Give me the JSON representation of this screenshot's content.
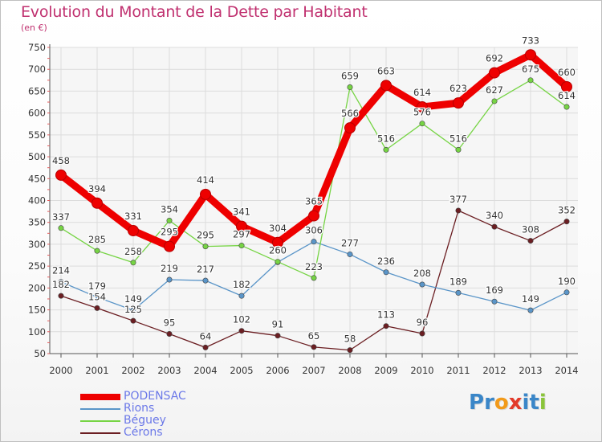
{
  "chart_data": {
    "type": "line",
    "title": "Evolution du Montant de la Dette par Habitant",
    "subtitle": "(en €)",
    "categories": [
      "2000",
      "2001",
      "2002",
      "2003",
      "2004",
      "2005",
      "2006",
      "2007",
      "2008",
      "2009",
      "2010",
      "2011",
      "2012",
      "2013",
      "2014"
    ],
    "ylim": [
      50,
      750
    ],
    "yticks": [
      50,
      100,
      150,
      200,
      250,
      300,
      350,
      400,
      450,
      500,
      550,
      600,
      650,
      700,
      750
    ],
    "grid": true,
    "legend_position": "bottom-left",
    "series": [
      {
        "name": "PODENSAC",
        "color": "#ee0000",
        "values": [
          458,
          394,
          331,
          295,
          414,
          341,
          304,
          365,
          566,
          663,
          614,
          623,
          692,
          733,
          660
        ]
      },
      {
        "name": "Rions",
        "color": "#5a95c8",
        "values": [
          214,
          179,
          149,
          219,
          217,
          182,
          259,
          306,
          277,
          236,
          208,
          189,
          169,
          149,
          190
        ]
      },
      {
        "name": "Béguey",
        "color": "#76d444",
        "values": [
          337,
          285,
          258,
          354,
          295,
          297,
          260,
          223,
          659,
          516,
          576,
          516,
          627,
          675,
          614
        ]
      },
      {
        "name": "Cérons",
        "color": "#6b1e22",
        "values": [
          182,
          154,
          125,
          95,
          64,
          102,
          91,
          65,
          58,
          113,
          96,
          377,
          340,
          308,
          352
        ]
      }
    ]
  },
  "logo": {
    "letters": [
      {
        "ch": "P",
        "color": "#3a86c8"
      },
      {
        "ch": "r",
        "color": "#3a86c8"
      },
      {
        "ch": "o",
        "color": "#f29a1a"
      },
      {
        "ch": "x",
        "color": "#e23a2a"
      },
      {
        "ch": "i",
        "color": "#3a86c8"
      },
      {
        "ch": "t",
        "color": "#3a86c8"
      },
      {
        "ch": "i",
        "color": "#8ac43a"
      }
    ]
  }
}
